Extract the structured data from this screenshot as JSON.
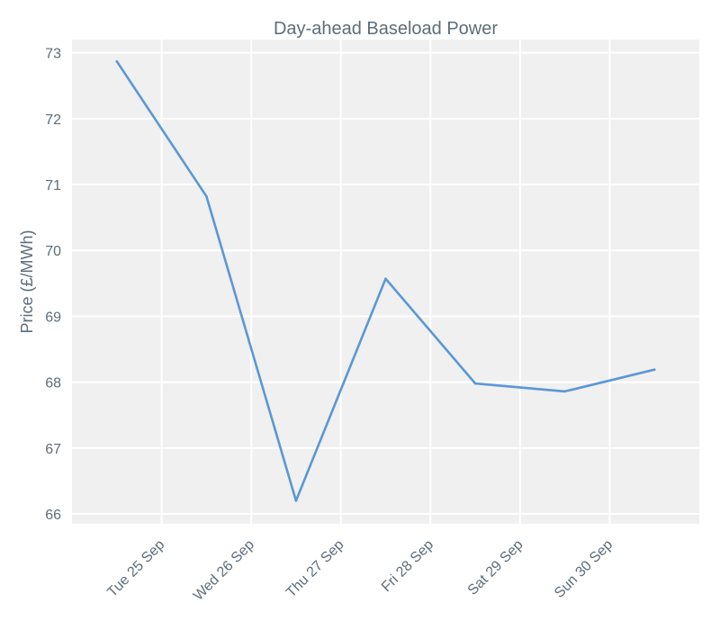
{
  "chart_data": {
    "type": "line",
    "title": "Day-ahead Baseload Power",
    "xlabel": "",
    "ylabel": "Price (£/MWh)",
    "x_tick_labels": [
      "Tue 25 Sep",
      "Wed 26 Sep",
      "Thu 27 Sep",
      "Fri 28 Sep",
      "Sat 29 Sep",
      "Sun 30 Sep"
    ],
    "y_ticks": [
      66,
      67,
      68,
      69,
      70,
      71,
      72,
      73
    ],
    "ylim": [
      65.85,
      73.2
    ],
    "grid": true,
    "series": [
      {
        "color": "#5b97d5",
        "points": [
          {
            "x": "2018-09-24 12:00",
            "y": 72.87
          },
          {
            "x": "2018-09-25 12:00",
            "y": 70.82
          },
          {
            "x": "2018-09-26 12:00",
            "y": 66.2
          },
          {
            "x": "2018-09-27 12:00",
            "y": 69.57
          },
          {
            "x": "2018-09-28 12:00",
            "y": 67.98
          },
          {
            "x": "2018-09-29 12:00",
            "y": 67.86
          },
          {
            "x": "2018-09-30 12:00",
            "y": 68.19
          }
        ]
      }
    ]
  }
}
